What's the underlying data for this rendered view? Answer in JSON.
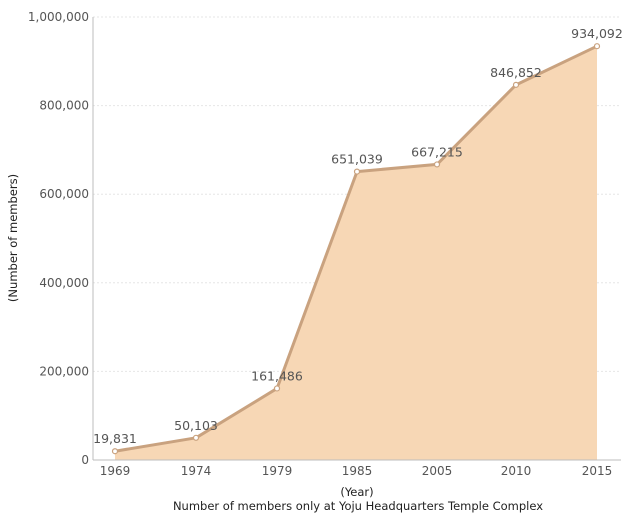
{
  "chart_data": {
    "type": "area",
    "categories": [
      "1969",
      "1974",
      "1979",
      "1985",
      "2005",
      "2010",
      "2015"
    ],
    "series": [
      {
        "values": [
          19831,
          50103,
          161486,
          651039,
          667215,
          846852,
          934092
        ]
      }
    ],
    "data_labels": [
      "19,831",
      "50,103",
      "161,486",
      "651,039",
      "667,215",
      "846,852",
      "934,092"
    ],
    "yticks": [
      "0",
      "200,000",
      "400,000",
      "600,000",
      "800,000",
      "1,000,000"
    ],
    "ytick_values": [
      0,
      200000,
      400000,
      600000,
      800000,
      1000000
    ],
    "ylim": [
      0,
      1000000
    ],
    "xlabel": "(Year)",
    "ylabel": "(Number of members)",
    "caption": "Number of members only at Yoju Headquarters Temple Complex",
    "grid": true,
    "legend": "none",
    "colors": {
      "fill": "#f7d7b5",
      "line": "#c9a27f",
      "grid": "#e6e6e6",
      "axis": "#bdbdbd"
    }
  }
}
